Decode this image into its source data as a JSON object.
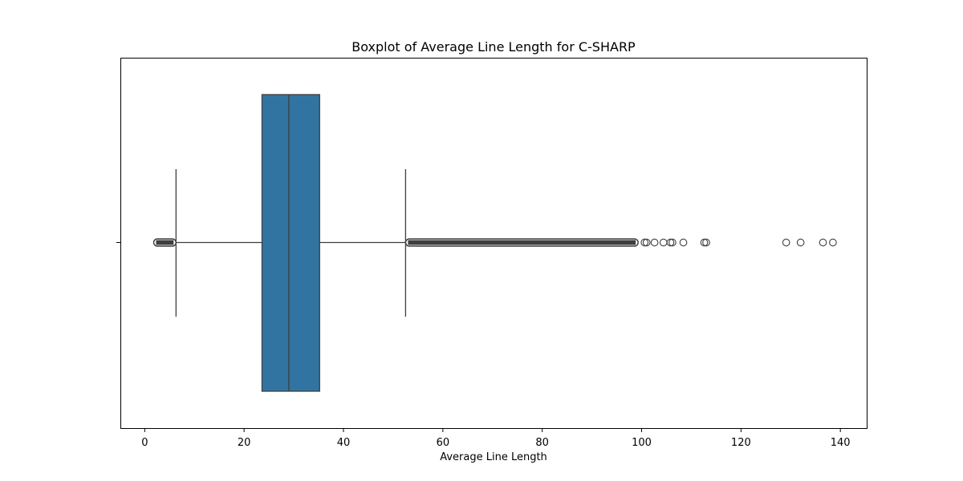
{
  "chart_data": {
    "type": "boxplot",
    "orientation": "horizontal",
    "title": "Boxplot of Average Line Length for C-SHARP",
    "xlabel": "Average Line Length",
    "ylabel": "",
    "xlim": [
      -4.9,
      145.3
    ],
    "xticks": [
      0,
      20,
      40,
      60,
      80,
      100,
      120,
      140
    ],
    "xtick_labels": [
      "0",
      "20",
      "40",
      "60",
      "80",
      "100",
      "120",
      "140"
    ],
    "grid": false,
    "box_color": "#3274a1",
    "edge_color": "#3f3f3f",
    "box": {
      "whisker_low": 6.3,
      "q1": 23.6,
      "median": 29.0,
      "q3": 35.2,
      "whisker_high": 52.5
    },
    "outlier_bands": [
      {
        "from": 1.8,
        "to": 6.3
      },
      {
        "from": 52.5,
        "to": 99.3
      }
    ],
    "outliers": [
      100.6,
      101.0,
      102.6,
      104.4,
      105.8,
      106.2,
      108.4,
      112.6,
      113.0,
      129.1,
      132.0,
      136.5,
      138.5
    ]
  }
}
